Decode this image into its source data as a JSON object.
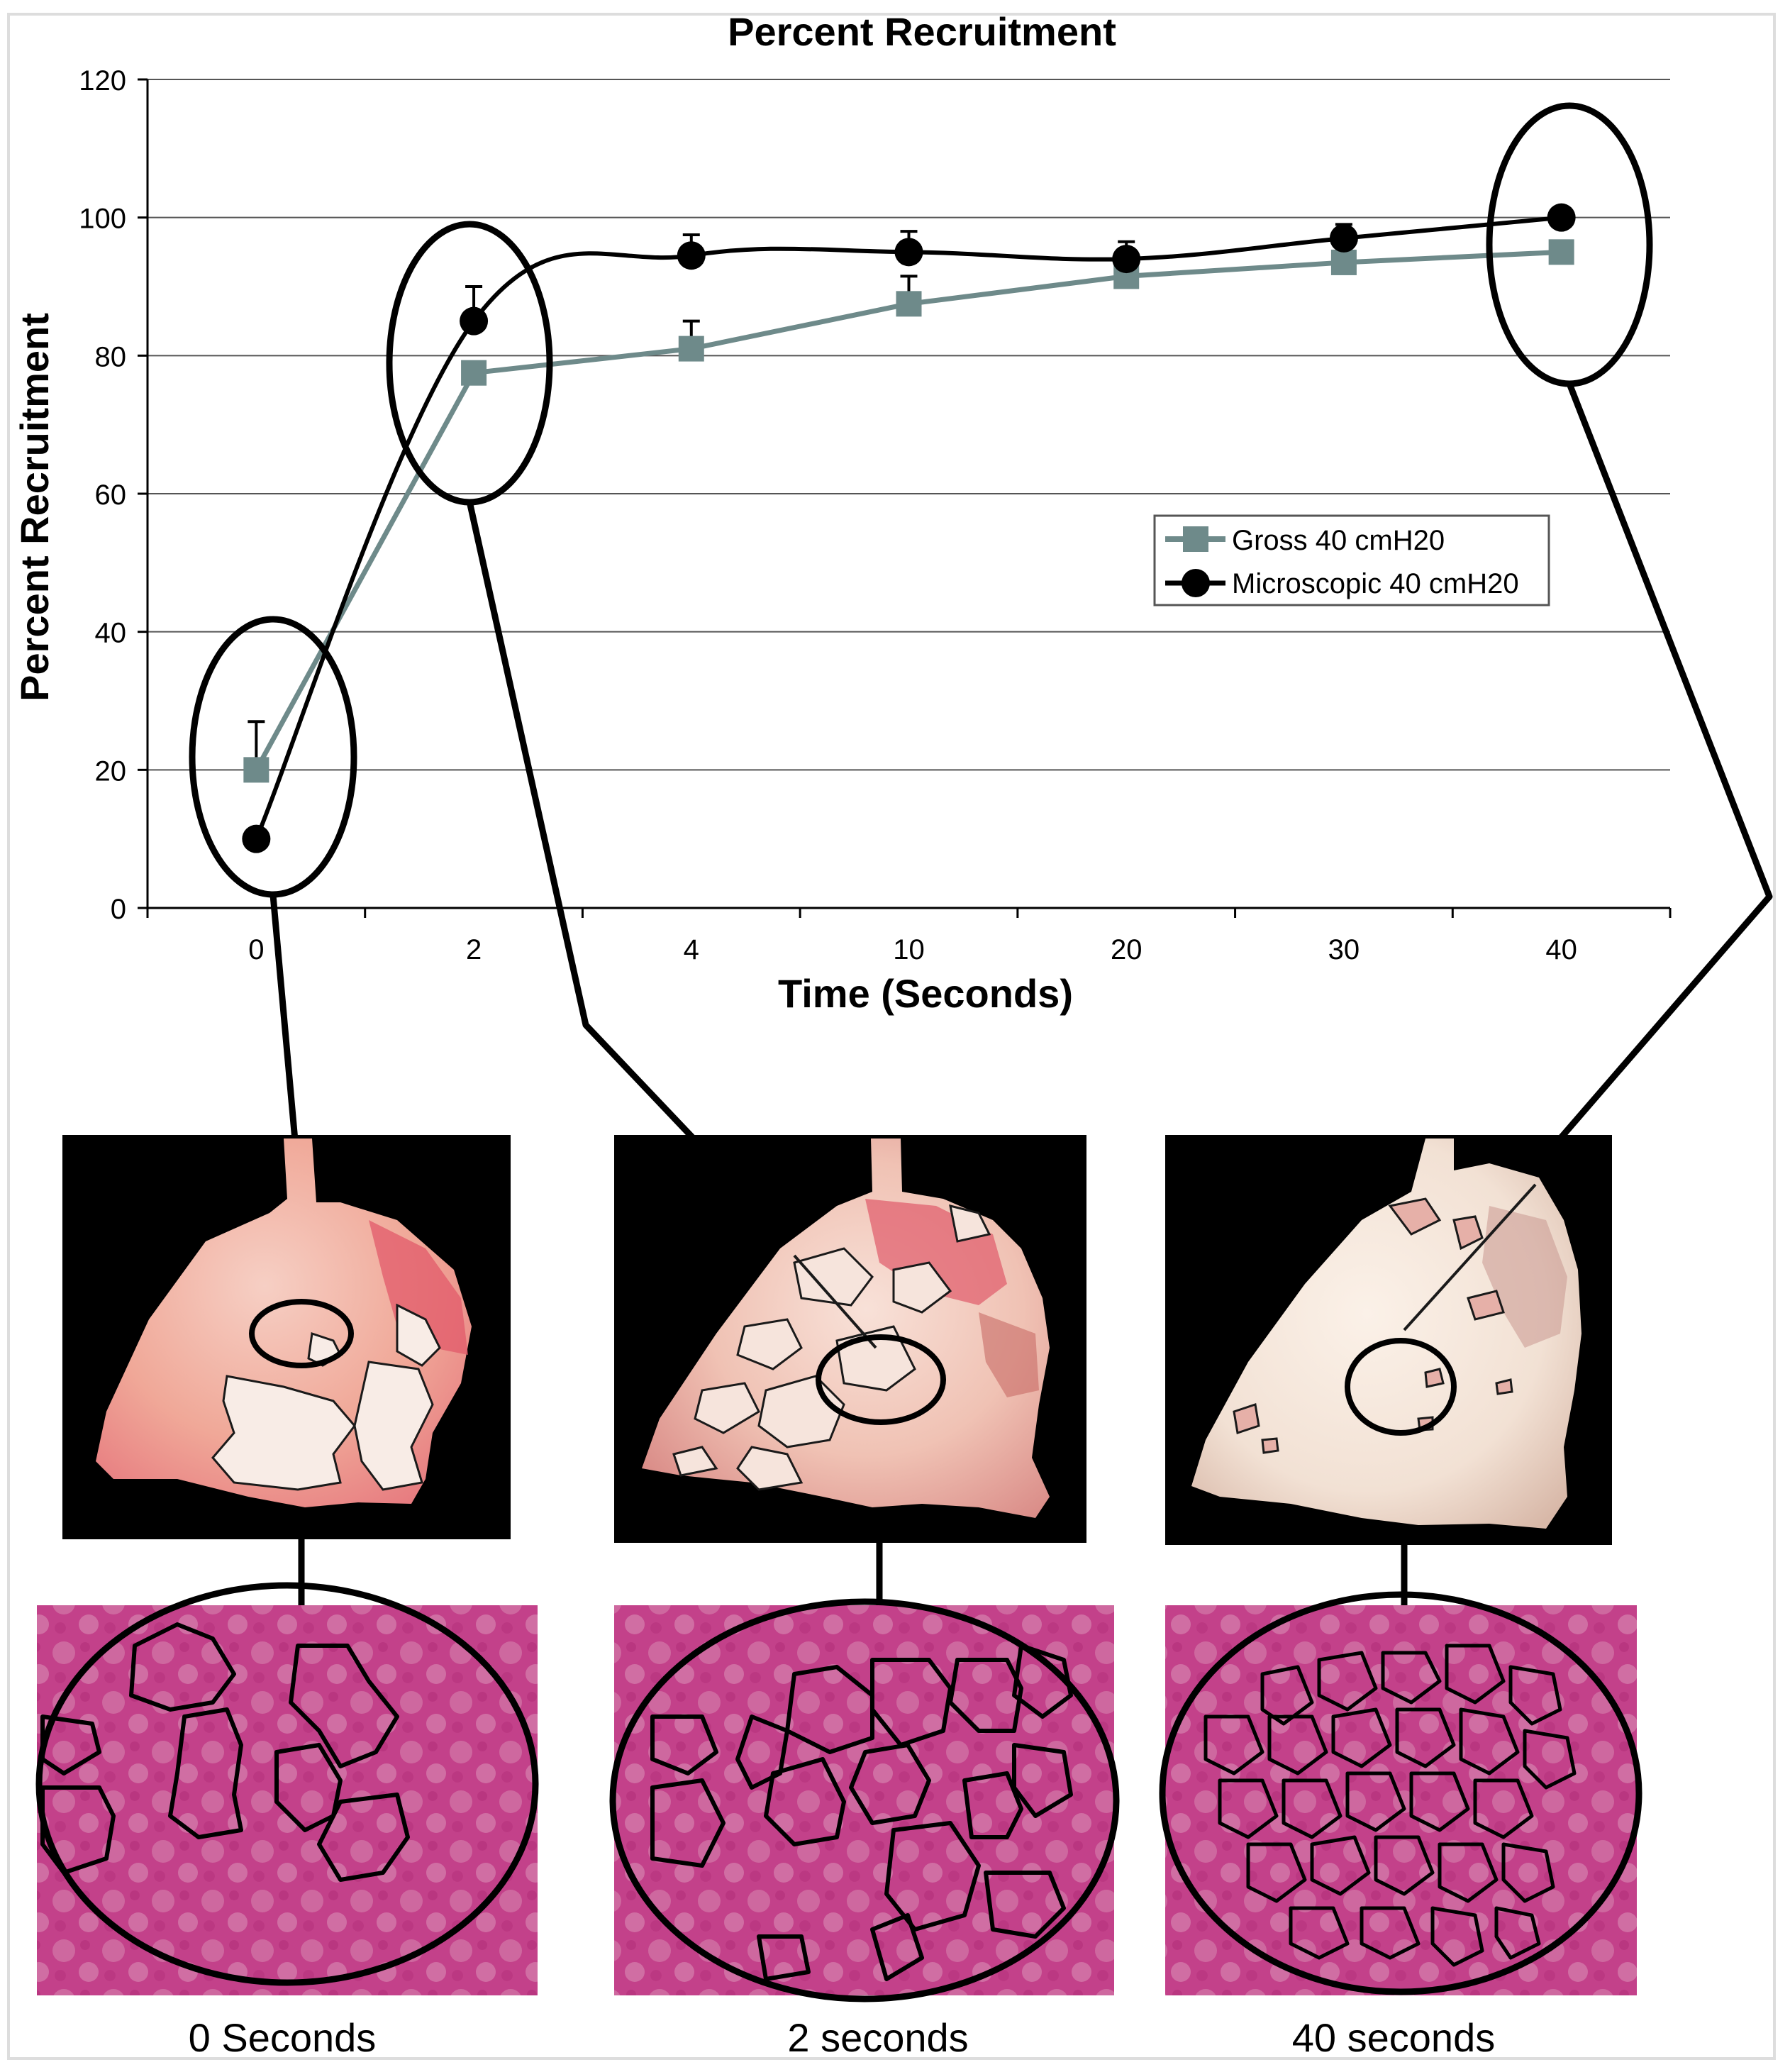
{
  "chart_data": {
    "type": "line",
    "title": "Percent Recruitment",
    "xlabel": "Time (Seconds)",
    "ylabel": "Percent Recruitment",
    "categories": [
      "0",
      "2",
      "4",
      "10",
      "20",
      "30",
      "40"
    ],
    "ylim": [
      0,
      120
    ],
    "yticks": [
      "0",
      "20",
      "40",
      "60",
      "80",
      "100",
      "120"
    ],
    "grid": true,
    "legend_position": "center-right",
    "series": [
      {
        "name": "Gross 40 cmH20",
        "marker": "square",
        "color": "#6e8a8a",
        "values": [
          20,
          77.5,
          81,
          87.5,
          91.5,
          93.5,
          95
        ],
        "error_up": [
          7,
          0,
          4,
          4,
          0,
          0,
          0
        ]
      },
      {
        "name": "Microscopic 40 cmH20",
        "marker": "circle",
        "color": "#000000",
        "values": [
          10,
          85,
          94.5,
          95,
          94,
          97,
          100
        ],
        "error_up": [
          0,
          5,
          3,
          3,
          2.5,
          2,
          0
        ]
      }
    ],
    "highlighted_categories": [
      "0",
      "2",
      "40"
    ]
  },
  "panels": [
    {
      "caption": "0 Seconds"
    },
    {
      "caption": "2 seconds"
    },
    {
      "caption": "40 seconds"
    }
  ],
  "colors": {
    "gross": "#6e8a8a",
    "micro": "#000000",
    "lung_tissue": "#f2b6a8",
    "lung_inflamed": "#e0556a",
    "histology_bg": "#c8408c",
    "panel_bg": "#000000"
  }
}
